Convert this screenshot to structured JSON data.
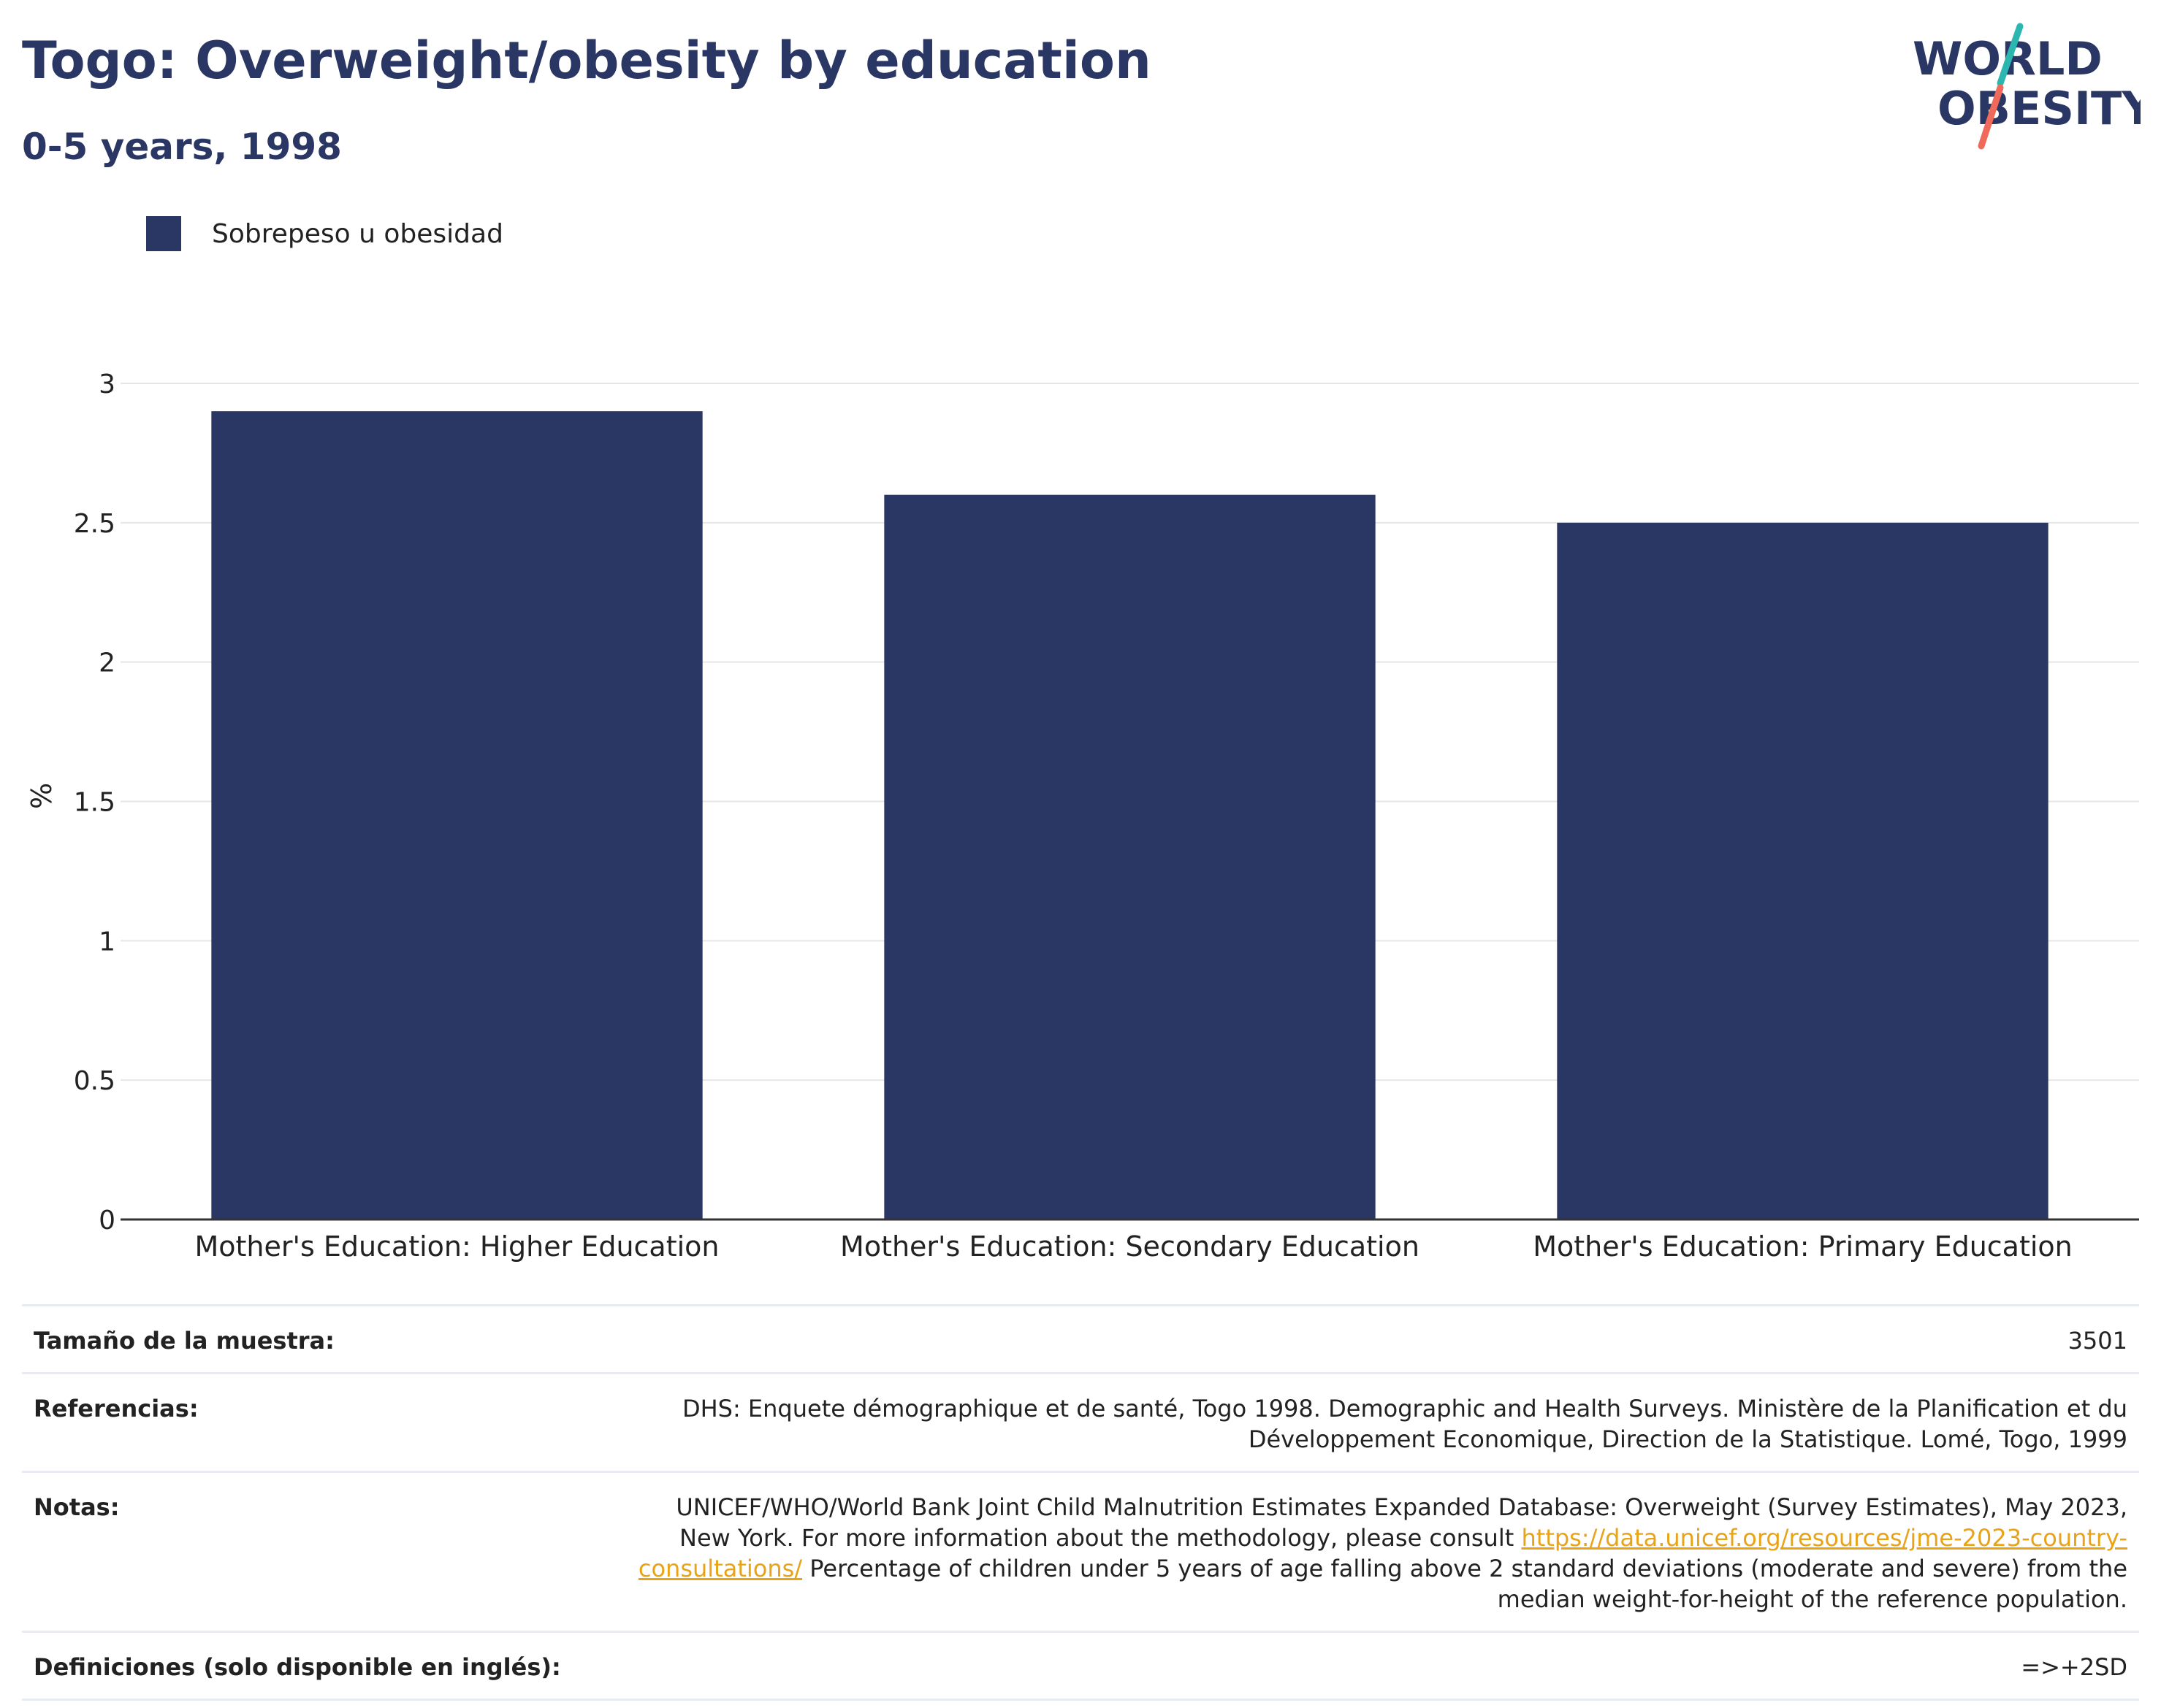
{
  "header": {
    "title": "Togo: Overweight/obesity by education",
    "subtitle": "0-5 years, 1998"
  },
  "logo": {
    "line1": "WORLD",
    "line2": "OBESITY"
  },
  "legend": {
    "label": "Sobrepeso u obesidad"
  },
  "colors": {
    "bar": "#2a3663",
    "title": "#2a3663",
    "link": "#e8a317",
    "grid": "#e6e6e6"
  },
  "chart_data": {
    "type": "bar",
    "categories": [
      "Mother's Education: Higher Education",
      "Mother's Education: Secondary Education",
      "Mother's Education: Primary Education"
    ],
    "series": [
      {
        "name": "Sobrepeso u obesidad",
        "values": [
          2.9,
          2.6,
          2.5
        ]
      }
    ],
    "ylabel": "%",
    "ylim": [
      0,
      3
    ],
    "yticks": [
      "0",
      "0.5",
      "1",
      "1.5",
      "2",
      "2.5",
      "3"
    ],
    "grid": true,
    "legend_position": "top-left"
  },
  "info": {
    "sample_label": "Tamaño de la muestra:",
    "sample_value": "3501",
    "refs_label": "Referencias:",
    "refs_value": "DHS: Enquete démographique et de santé, Togo 1998. Demographic and Health Surveys. Ministère de la Planification et du Développement Economique, Direction de la Statistique. Lomé, Togo, 1999",
    "notes_label": "Notas:",
    "notes_before": "UNICEF/WHO/World Bank Joint Child Malnutrition Estimates Expanded Database: Overweight (Survey Estimates), May 2023, New York. For more information about the methodology, please consult ",
    "notes_link": "https://data.unicef.org/resources/jme-2023-country-consultations/",
    "notes_after": " Percentage of children under 5 years of age falling above 2 standard deviations (moderate and severe) from the median weight-for-height of the reference population.",
    "defs_label": "Definiciones (solo disponible en inglés):",
    "defs_value": "=>+2SD"
  }
}
